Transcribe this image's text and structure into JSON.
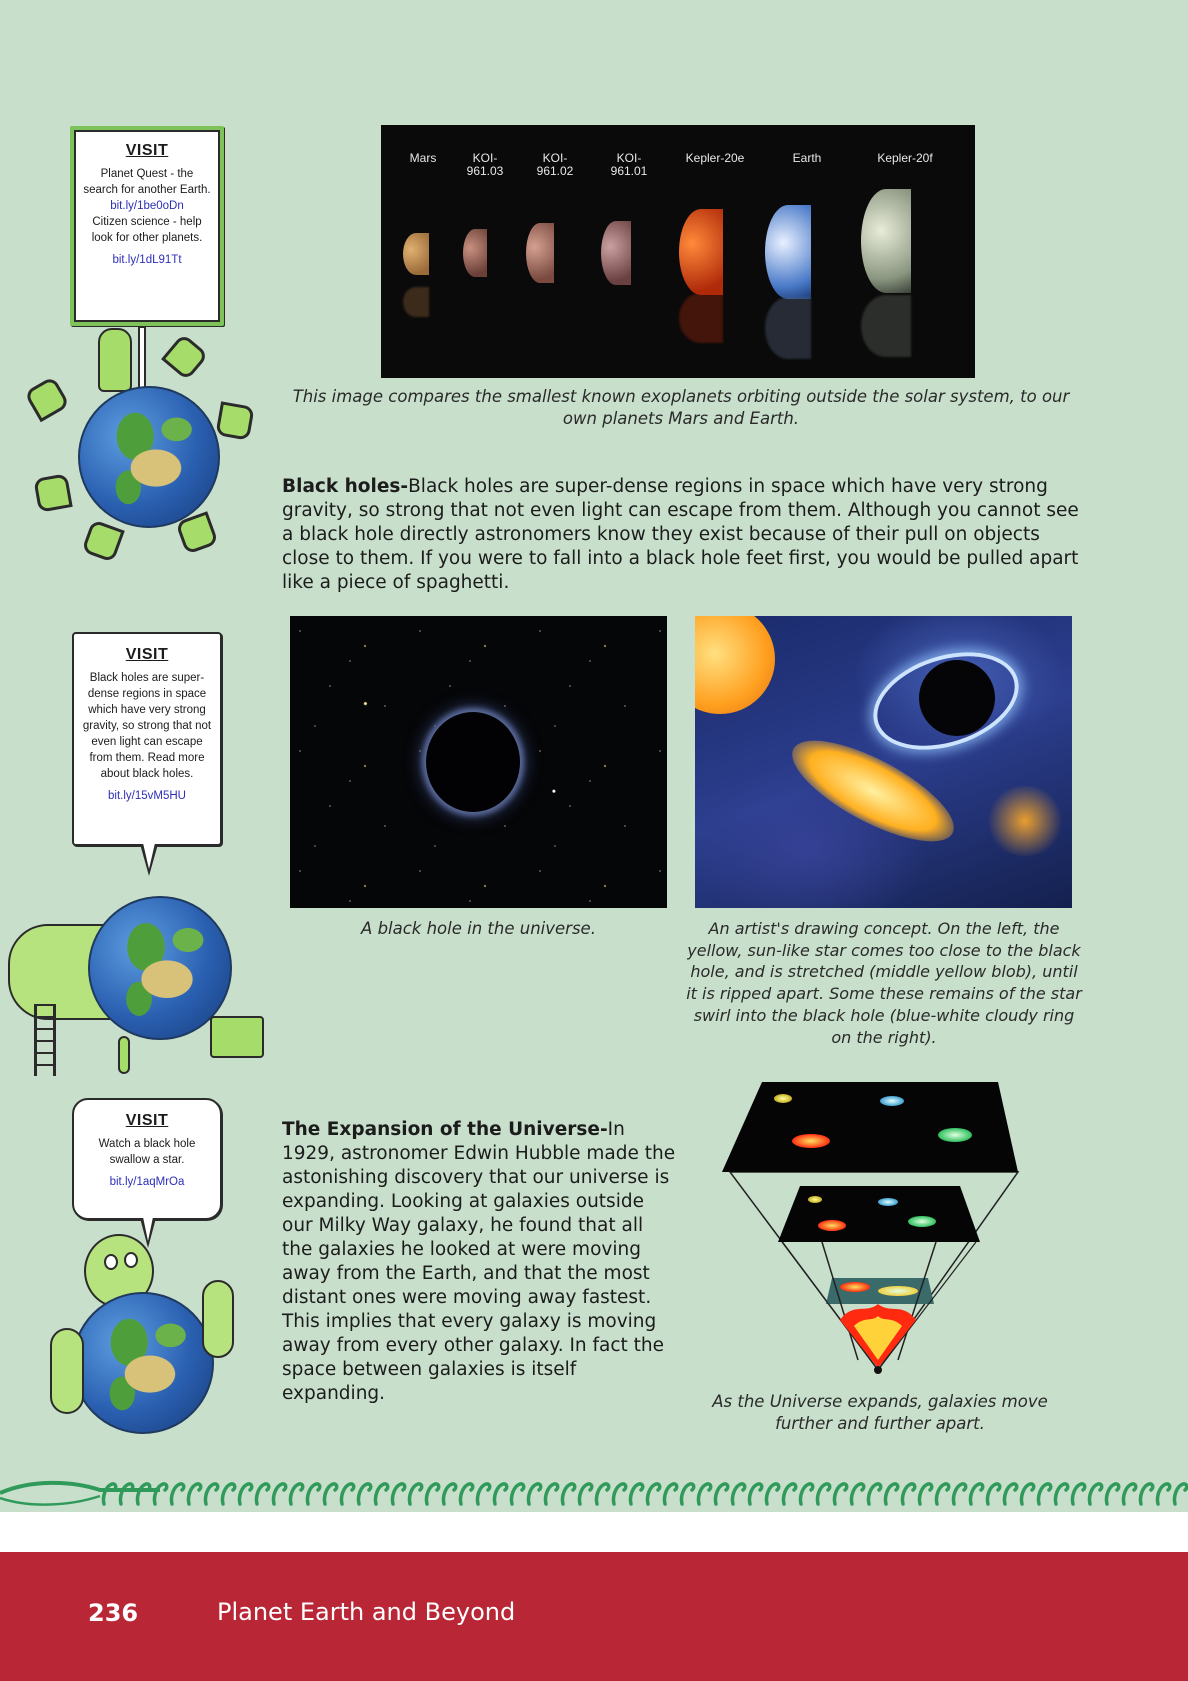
{
  "visit_boxes": [
    {
      "title": "VISIT",
      "text1": "Planet Quest - the search for another Earth.",
      "link1": "bit.ly/1be0oDn",
      "text2": "Citizen science - help look for other planets.",
      "link2": "bit.ly/1dL91Tt"
    },
    {
      "title": "VISIT",
      "text1": "Black holes are super-dense regions in space which have very strong gravity, so strong that not even light can escape from them. Read more about black holes.",
      "link1": "bit.ly/15vM5HU"
    },
    {
      "title": "VISIT",
      "text1": "Watch a black hole swallow a star.",
      "link1": "bit.ly/1aqMrOa"
    }
  ],
  "exoplanet_figure": {
    "labels": [
      "Mars",
      "KOI-\n961.03",
      "KOI-\n961.02",
      "KOI-\n961.01",
      "Kepler-20e",
      "Earth",
      "Kepler-20f"
    ],
    "caption": "This image compares the smallest known exoplanets orbiting outside the solar system, to our own planets Mars and Earth."
  },
  "black_holes": {
    "heading": "Black holes-",
    "body": "Black holes are super-dense regions in space which have very strong gravity, so strong that not even light can escape from them. Although you cannot see a black hole directly astronomers know they exist because of their pull on objects close to them. If you were to fall into a black hole feet first, you would be pulled apart like a piece of spaghetti.",
    "photo1_caption": "A black hole in the universe.",
    "photo2_caption": "An artist's drawing concept. On the left, the yellow, sun-like star comes too close to the black hole, and is stretched (middle yellow blob), until it is ripped apart. Some these remains of the star swirl into the black hole (blue-white cloudy ring on the right)."
  },
  "expansion": {
    "heading": "The Expansion of the Universe-",
    "body": "In 1929, astronomer Edwin Hubble made the astonishing discovery that our universe is expanding. Looking at galaxies outside our Milky Way galaxy, he found that all the galaxies he looked at were moving away from the Earth, and that the most distant ones were moving away fastest. This implies that every galaxy is moving away from every other galaxy. In fact the space between galaxies is itself expanding.",
    "diagram_caption": "As the Universe expands, galaxies move further and further apart."
  },
  "footer": {
    "page_number": "236",
    "book_title": "Planet Earth and Beyond"
  },
  "colors": {
    "page_background": "#c8dfcb",
    "footer_red": "#b92636",
    "link_blue": "#2d2fb8",
    "cartoon_green": "#a6dd6a"
  }
}
